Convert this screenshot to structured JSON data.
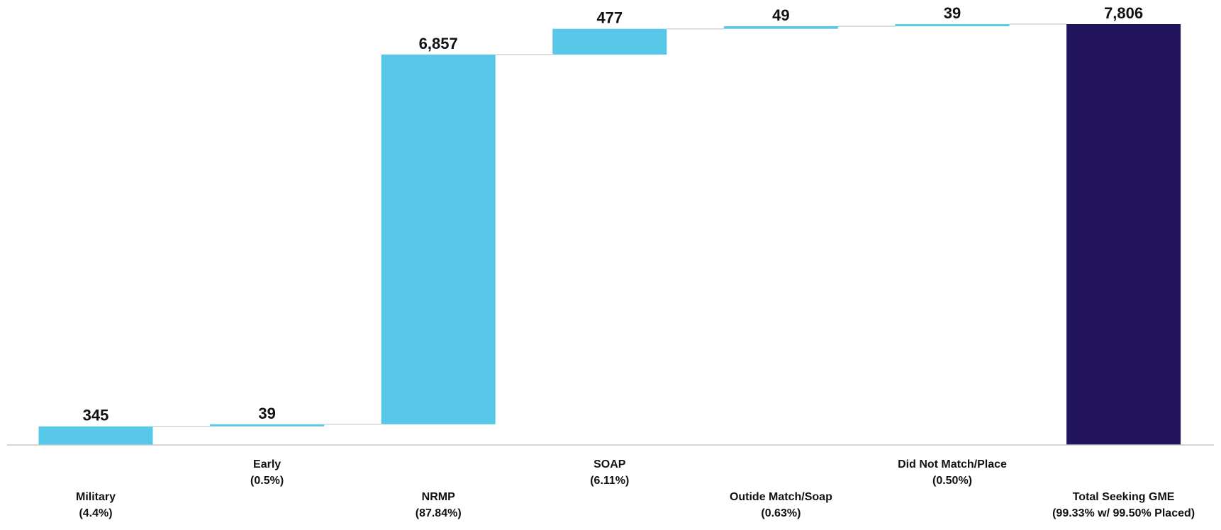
{
  "chart_data": {
    "type": "bar",
    "subtype": "waterfall",
    "title": "",
    "xlabel": "",
    "ylabel": "",
    "ylim": [
      0,
      7806
    ],
    "grid": false,
    "legend": "none",
    "colors": {
      "increment": "#57c8e8",
      "total": "#21145c"
    },
    "categories": [
      {
        "name": "Military",
        "pct": "(4.4%)",
        "value": 345,
        "value_label": "345",
        "kind": "increment",
        "label_row": "low"
      },
      {
        "name": "Early",
        "pct": "(0.5%)",
        "value": 39,
        "value_label": "39",
        "kind": "increment",
        "label_row": "high"
      },
      {
        "name": "NRMP",
        "pct": "(87.84%)",
        "value": 6857,
        "value_label": "6,857",
        "kind": "increment",
        "label_row": "low"
      },
      {
        "name": "SOAP",
        "pct": "(6.11%)",
        "value": 477,
        "value_label": "477",
        "kind": "increment",
        "label_row": "high"
      },
      {
        "name": "Outide Match/Soap",
        "pct": "(0.63%)",
        "value": 49,
        "value_label": "49",
        "kind": "increment",
        "label_row": "low"
      },
      {
        "name": "Did Not Match/Place",
        "pct": "(0.50%)",
        "value": 39,
        "value_label": "39",
        "kind": "increment",
        "label_row": "high"
      },
      {
        "name": "Total Seeking GME",
        "pct": "(99.33% w/ 99.50% Placed)",
        "value": 7806,
        "value_label": "7,806",
        "kind": "total",
        "label_row": "low"
      }
    ]
  }
}
